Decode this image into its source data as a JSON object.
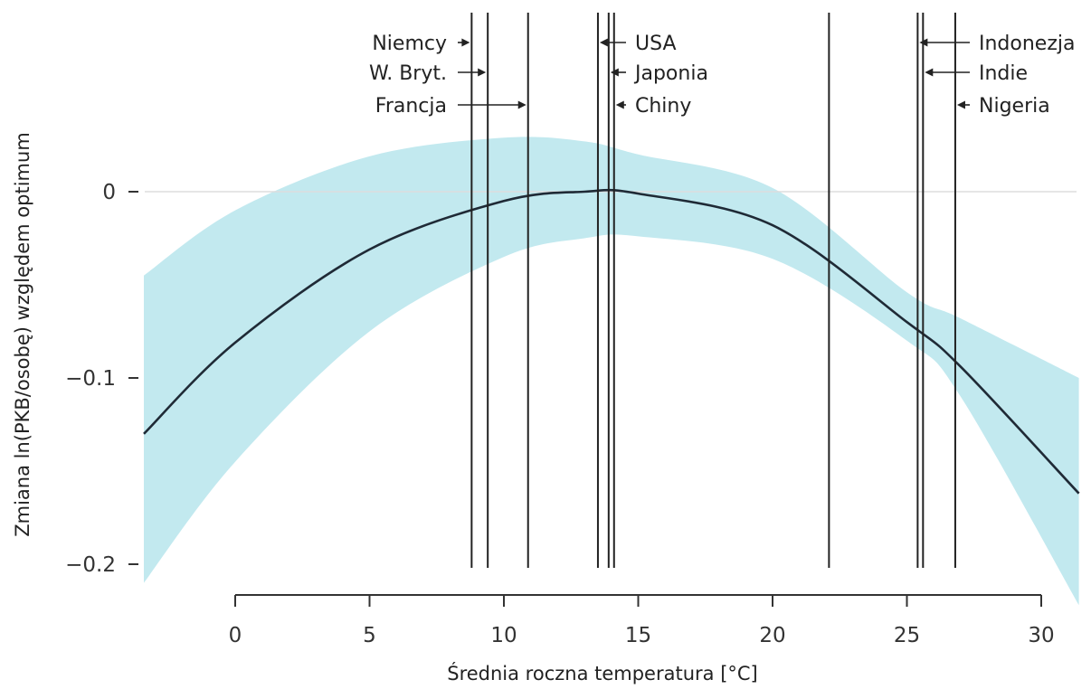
{
  "chart_data": {
    "type": "line",
    "title": "",
    "xlabel": "Średnia roczna temperatura [°C]",
    "ylabel": "Zmiana ln(PKB/osobę) względem optimum",
    "xlim": [
      -3.5,
      31.5
    ],
    "ylim": [
      -0.215,
      0.04
    ],
    "x_ticks": [
      0,
      5,
      10,
      15,
      20,
      25,
      30
    ],
    "y_ticks": [
      0,
      -0.1,
      -0.2
    ],
    "x_tick_labels": [
      "0",
      "5",
      "10",
      "15",
      "20",
      "25",
      "30"
    ],
    "y_tick_labels": [
      "0",
      "−0.1",
      "−0.2"
    ],
    "grid": false,
    "reference_line_y": 0,
    "colors": {
      "curve": "#1f2a36",
      "band": "#c2e9ef",
      "lines": "#222222",
      "axis": "#333333",
      "zero_line": "#dddddd"
    },
    "series": [
      {
        "type": "line",
        "x": [
          -3.4,
          0,
          5,
          10,
          13,
          15,
          20,
          25,
          27,
          31.4
        ],
        "y": [
          -0.13,
          -0.081,
          -0.031,
          -0.005,
          0,
          -0.001,
          -0.018,
          -0.07,
          -0.094,
          -0.162
        ]
      },
      {
        "type": "band",
        "x": [
          -3.4,
          0,
          5,
          10,
          13,
          15,
          20,
          25,
          27,
          31.4
        ],
        "y_low": [
          -0.21,
          -0.145,
          -0.075,
          -0.035,
          -0.025,
          -0.024,
          -0.036,
          -0.08,
          -0.11,
          -0.222
        ],
        "y_high": [
          -0.045,
          -0.01,
          0.019,
          0.029,
          0.027,
          0.02,
          0.002,
          -0.054,
          -0.068,
          -0.1
        ]
      }
    ],
    "annotations": [
      {
        "label": "Niemcy",
        "x": 8.8,
        "side": "left",
        "row": 1
      },
      {
        "label": "W. Bryt.",
        "x": 9.4,
        "side": "left",
        "row": 2
      },
      {
        "label": "Francja",
        "x": 10.9,
        "side": "left",
        "row": 3
      },
      {
        "label": "USA",
        "x": 13.5,
        "side": "right",
        "row": 1
      },
      {
        "label": "Japonia",
        "x": 13.9,
        "side": "right",
        "row": 2
      },
      {
        "label": "Chiny",
        "x": 14.1,
        "side": "right",
        "row": 3
      },
      {
        "label": "",
        "x": 22.1,
        "side": "none",
        "row": 0
      },
      {
        "label": "Indonezja",
        "x": 25.4,
        "side": "right",
        "row": 1
      },
      {
        "label": "Indie",
        "x": 25.6,
        "side": "right",
        "row": 2
      },
      {
        "label": "Nigeria",
        "x": 26.8,
        "side": "right",
        "row": 3
      }
    ]
  }
}
